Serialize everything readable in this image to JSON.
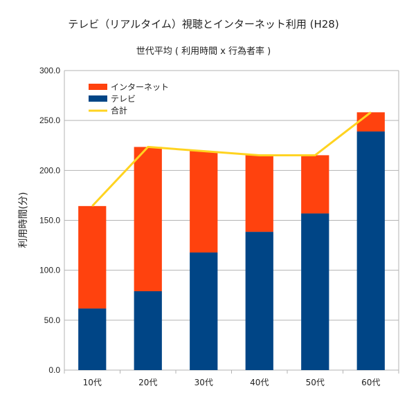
{
  "chart_data": {
    "type": "bar",
    "stacked": true,
    "title": "テレビ（リアルタイム）視聴とインターネット利用 (H28)",
    "subtitle": "世代平均 ( 利用時間 x 行為者率 )",
    "ylabel": "利用時間(分)",
    "xlabel": "",
    "ylim": [
      0,
      300
    ],
    "yticks": [
      "0.0",
      "50.0",
      "100.0",
      "150.0",
      "200.0",
      "250.0",
      "300.0"
    ],
    "grid": true,
    "legend_position": "top-left",
    "categories": [
      "10代",
      "20代",
      "30代",
      "40代",
      "50代",
      "60代"
    ],
    "series": [
      {
        "name": "テレビ",
        "type": "bar",
        "color": "#004586",
        "values": [
          61.7,
          79.0,
          117.8,
          138.5,
          156.9,
          239.0
        ]
      },
      {
        "name": "インターネット",
        "type": "bar",
        "color": "#ff420e",
        "values": [
          102.6,
          144.5,
          101.5,
          76.6,
          58.3,
          19.2
        ]
      },
      {
        "name": "合計",
        "type": "line",
        "color": "#ffd320",
        "values": [
          164.3,
          223.5,
          219.3,
          215.1,
          215.2,
          258.2
        ]
      }
    ]
  }
}
